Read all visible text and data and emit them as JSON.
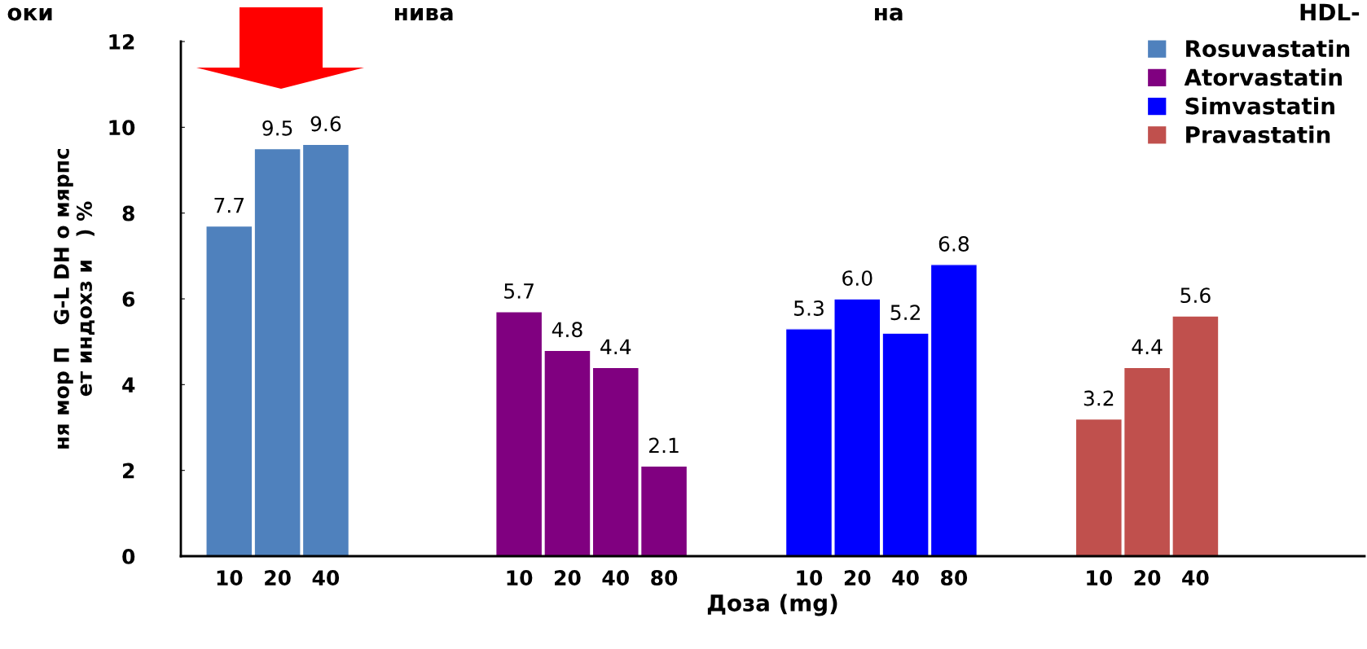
{
  "chart_data": {
    "type": "bar",
    "categories": [
      "10",
      "20",
      "40",
      null,
      null,
      null,
      "10",
      "20",
      "40",
      "80",
      null,
      null,
      "10",
      "20",
      "40",
      "80",
      null,
      null,
      "10",
      "20",
      "40"
    ],
    "series": [
      {
        "name": "Rosuvastatin",
        "color": "#4f81bd",
        "values": [
          7.7,
          9.5,
          9.6,
          null,
          null,
          null,
          null,
          null,
          null,
          null,
          null,
          null,
          null,
          null,
          null,
          null,
          null,
          null,
          null,
          null,
          null
        ],
        "value_labels": [
          "7.7",
          "9.5",
          "9.6",
          null,
          null,
          null,
          null,
          null,
          null,
          null,
          null,
          null,
          null,
          null,
          null,
          null,
          null,
          null,
          null,
          null,
          null
        ]
      },
      {
        "name": "Atorvastatin",
        "color": "#800080",
        "values": [
          null,
          null,
          null,
          null,
          null,
          null,
          5.7,
          4.8,
          4.4,
          2.1,
          null,
          null,
          null,
          null,
          null,
          null,
          null,
          null,
          null,
          null,
          null
        ],
        "value_labels": [
          null,
          null,
          null,
          null,
          null,
          null,
          "5.7",
          "4.8",
          "4.4",
          "2.1",
          null,
          null,
          null,
          null,
          null,
          null,
          null,
          null,
          null,
          null,
          null
        ]
      },
      {
        "name": "Simvastatin",
        "color": "#0000ff",
        "values": [
          null,
          null,
          null,
          null,
          null,
          null,
          null,
          null,
          null,
          null,
          null,
          null,
          5.3,
          6.0,
          5.2,
          6.8,
          null,
          null,
          null,
          null,
          null
        ],
        "value_labels": [
          null,
          null,
          null,
          null,
          null,
          null,
          null,
          null,
          null,
          null,
          null,
          null,
          "5.3",
          "6.0",
          "5.2",
          "6.8",
          null,
          null,
          null,
          null,
          null
        ]
      },
      {
        "name": "Pravastatin",
        "color": "#c0504d",
        "values": [
          null,
          null,
          null,
          null,
          null,
          null,
          null,
          null,
          null,
          null,
          null,
          null,
          null,
          null,
          null,
          null,
          null,
          null,
          3.2,
          4.4,
          5.6
        ],
        "value_labels": [
          null,
          null,
          null,
          null,
          null,
          null,
          null,
          null,
          null,
          null,
          null,
          null,
          null,
          null,
          null,
          null,
          null,
          null,
          "3.2",
          "4.4",
          "5.6"
        ]
      }
    ],
    "ylim": [
      0,
      12
    ],
    "yticks": [
      0,
      2,
      4,
      6,
      8,
      10,
      12
    ],
    "xlabel": "Доза (mg)",
    "ylabel": "ня мор П   G-L DH o мярпс\nет индохз и   ) %",
    "annotations": [
      "оки",
      "нива",
      "на",
      "HDL-"
    ],
    "legend": "top right",
    "grid": false
  }
}
